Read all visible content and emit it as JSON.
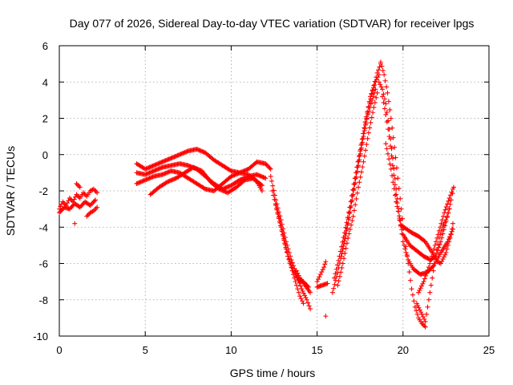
{
  "chart_data": {
    "type": "scatter",
    "title": "Day 077 of 2026, Sidereal Day-to-day VTEC variation (SDTVAR) for receiver lpgs",
    "xlabel": "GPS time / hours",
    "ylabel": "SDTVAR / TECUs",
    "xlim": [
      0,
      25
    ],
    "ylim": [
      -10,
      6
    ],
    "x_ticks": [
      "0",
      "5",
      "10",
      "15",
      "20",
      "25"
    ],
    "y_ticks": [
      "-10",
      "-8",
      "-6",
      "-4",
      "-2",
      "0",
      "2",
      "4",
      "6"
    ],
    "grid": true,
    "marker": "+",
    "colors": {
      "series": "#ff0000",
      "grid": "#a0a0a0",
      "axes": "#000000"
    },
    "series": [
      {
        "name": "SDTVAR",
        "segments": [
          [
            [
              0.0,
              -3.0
            ],
            [
              0.2,
              -2.6
            ],
            [
              0.4,
              -2.8
            ],
            [
              0.6,
              -2.4
            ],
            [
              0.8,
              -2.6
            ],
            [
              1.0,
              -2.2
            ],
            [
              1.2,
              -2.4
            ],
            [
              1.4,
              -2.1
            ],
            [
              1.6,
              -2.3
            ],
            [
              1.8,
              -2.0
            ],
            [
              2.0,
              -1.9
            ],
            [
              2.2,
              -2.1
            ]
          ],
          [
            [
              0.0,
              -3.2
            ],
            [
              0.3,
              -2.9
            ],
            [
              0.6,
              -3.0
            ],
            [
              0.9,
              -2.7
            ],
            [
              1.2,
              -2.9
            ],
            [
              1.5,
              -2.6
            ],
            [
              1.8,
              -2.8
            ],
            [
              2.1,
              -2.5
            ]
          ],
          [
            [
              1.6,
              -3.4
            ],
            [
              1.8,
              -3.2
            ],
            [
              2.0,
              -3.1
            ],
            [
              2.2,
              -2.9
            ]
          ],
          [
            [
              0.9,
              -3.8
            ]
          ],
          [
            [
              1.0,
              -1.6
            ],
            [
              1.2,
              -1.8
            ]
          ],
          [
            [
              4.5,
              -0.5
            ],
            [
              5.0,
              -0.8
            ],
            [
              5.5,
              -0.6
            ],
            [
              6.0,
              -0.4
            ],
            [
              6.5,
              -0.2
            ],
            [
              7.0,
              0.0
            ],
            [
              7.5,
              0.2
            ],
            [
              8.0,
              0.3
            ],
            [
              8.5,
              0.1
            ],
            [
              9.0,
              -0.3
            ],
            [
              9.5,
              -0.6
            ],
            [
              10.0,
              -0.9
            ],
            [
              10.5,
              -1.0
            ],
            [
              11.0,
              -0.8
            ],
            [
              11.5,
              -0.4
            ],
            [
              12.0,
              -0.5
            ],
            [
              12.3,
              -0.8
            ]
          ],
          [
            [
              4.5,
              -1.0
            ],
            [
              5.0,
              -1.1
            ],
            [
              5.5,
              -0.9
            ],
            [
              6.0,
              -0.7
            ],
            [
              6.5,
              -0.6
            ],
            [
              7.0,
              -0.5
            ],
            [
              7.5,
              -0.6
            ],
            [
              8.0,
              -0.8
            ],
            [
              8.5,
              -1.2
            ],
            [
              9.0,
              -1.6
            ],
            [
              9.5,
              -1.9
            ],
            [
              10.0,
              -1.7
            ],
            [
              10.5,
              -1.4
            ],
            [
              11.0,
              -1.2
            ],
            [
              11.5,
              -1.1
            ],
            [
              12.0,
              -1.3
            ]
          ],
          [
            [
              4.5,
              -1.6
            ],
            [
              5.0,
              -1.4
            ],
            [
              5.5,
              -1.2
            ],
            [
              6.0,
              -1.1
            ],
            [
              6.5,
              -0.9
            ],
            [
              7.0,
              -1.0
            ],
            [
              7.5,
              -1.3
            ],
            [
              8.0,
              -1.6
            ],
            [
              8.5,
              -1.9
            ],
            [
              9.0,
              -2.0
            ],
            [
              9.5,
              -1.6
            ],
            [
              10.0,
              -1.2
            ],
            [
              10.5,
              -1.0
            ],
            [
              11.0,
              -1.1
            ],
            [
              11.5,
              -1.5
            ],
            [
              11.8,
              -2.0
            ]
          ],
          [
            [
              5.3,
              -2.2
            ],
            [
              5.8,
              -1.8
            ],
            [
              6.3,
              -1.5
            ],
            [
              6.8,
              -1.3
            ],
            [
              7.3,
              -1.0
            ],
            [
              7.8,
              -0.7
            ],
            [
              8.3,
              -0.9
            ],
            [
              8.8,
              -1.5
            ],
            [
              9.3,
              -1.9
            ],
            [
              9.8,
              -2.1
            ],
            [
              10.3,
              -1.8
            ],
            [
              10.8,
              -1.4
            ],
            [
              11.3,
              -1.3
            ],
            [
              11.8,
              -1.7
            ]
          ],
          [
            [
              12.3,
              -1.2
            ],
            [
              12.6,
              -2.5
            ],
            [
              12.9,
              -3.6
            ],
            [
              13.2,
              -4.8
            ],
            [
              13.5,
              -5.8
            ],
            [
              13.8,
              -6.6
            ],
            [
              14.1,
              -7.4
            ],
            [
              14.4,
              -8.0
            ],
            [
              14.6,
              -8.5
            ]
          ],
          [
            [
              12.4,
              -2.0
            ],
            [
              12.7,
              -3.2
            ],
            [
              13.0,
              -4.4
            ],
            [
              13.3,
              -5.6
            ],
            [
              13.6,
              -6.4
            ],
            [
              13.9,
              -6.9
            ],
            [
              14.2,
              -7.0
            ],
            [
              14.5,
              -7.3
            ]
          ],
          [
            [
              12.6,
              -2.8
            ],
            [
              12.9,
              -4.0
            ],
            [
              13.2,
              -5.2
            ],
            [
              13.5,
              -6.2
            ],
            [
              13.8,
              -7.2
            ],
            [
              14.0,
              -7.8
            ],
            [
              14.2,
              -8.2
            ]
          ],
          [
            [
              13.8,
              -6.4
            ],
            [
              14.0,
              -6.8
            ],
            [
              14.3,
              -7.2
            ],
            [
              14.6,
              -7.6
            ]
          ],
          [
            [
              15.0,
              -7.0
            ],
            [
              15.2,
              -6.6
            ],
            [
              15.4,
              -6.2
            ],
            [
              15.5,
              -5.9
            ]
          ],
          [
            [
              15.0,
              -7.3
            ],
            [
              15.3,
              -7.2
            ],
            [
              15.6,
              -7.1
            ]
          ],
          [
            [
              15.5,
              -8.9
            ]
          ],
          [
            [
              15.9,
              -7.6
            ],
            [
              16.2,
              -6.5
            ],
            [
              16.5,
              -5.2
            ],
            [
              16.8,
              -3.8
            ],
            [
              17.1,
              -2.2
            ],
            [
              17.4,
              -0.6
            ],
            [
              17.7,
              1.0
            ],
            [
              18.0,
              2.6
            ],
            [
              18.3,
              3.8
            ],
            [
              18.5,
              4.5
            ],
            [
              18.7,
              5.0
            ]
          ],
          [
            [
              16.0,
              -6.8
            ],
            [
              16.3,
              -5.6
            ],
            [
              16.6,
              -4.3
            ],
            [
              16.9,
              -2.9
            ],
            [
              17.2,
              -1.3
            ],
            [
              17.5,
              0.2
            ],
            [
              17.8,
              1.8
            ],
            [
              18.1,
              3.2
            ],
            [
              18.4,
              4.0
            ],
            [
              18.6,
              4.4
            ]
          ],
          [
            [
              16.2,
              -7.2
            ],
            [
              16.5,
              -6.0
            ],
            [
              16.8,
              -4.6
            ],
            [
              17.1,
              -3.4
            ],
            [
              17.4,
              -1.8
            ],
            [
              17.7,
              -0.4
            ],
            [
              18.0,
              1.2
            ],
            [
              18.3,
              2.6
            ],
            [
              18.5,
              3.4
            ]
          ],
          [
            [
              16.4,
              -5.6
            ],
            [
              16.7,
              -4.2
            ],
            [
              17.0,
              -2.6
            ],
            [
              17.3,
              -1.0
            ],
            [
              17.6,
              0.6
            ],
            [
              17.9,
              2.0
            ],
            [
              18.2,
              3.0
            ],
            [
              18.4,
              3.6
            ]
          ],
          [
            [
              18.7,
              5.1
            ],
            [
              18.9,
              4.4
            ],
            [
              19.1,
              3.4
            ],
            [
              19.3,
              2.0
            ],
            [
              19.5,
              0.4
            ],
            [
              19.7,
              -1.3
            ],
            [
              19.9,
              -3.0
            ],
            [
              20.1,
              -4.6
            ],
            [
              20.3,
              -6.0
            ],
            [
              20.5,
              -7.4
            ],
            [
              20.7,
              -8.4
            ],
            [
              20.9,
              -9.0
            ],
            [
              21.1,
              -9.3
            ],
            [
              21.3,
              -9.5
            ]
          ],
          [
            [
              18.6,
              4.0
            ],
            [
              18.8,
              3.6
            ],
            [
              19.0,
              2.8
            ],
            [
              19.2,
              1.4
            ],
            [
              19.4,
              -0.2
            ],
            [
              19.6,
              -1.9
            ],
            [
              19.8,
              -3.5
            ],
            [
              20.0,
              -4.8
            ],
            [
              20.3,
              -5.8
            ],
            [
              20.6,
              -6.3
            ],
            [
              21.0,
              -6.6
            ],
            [
              21.4,
              -6.5
            ],
            [
              21.8,
              -6.1
            ],
            [
              22.2,
              -5.4
            ],
            [
              22.6,
              -4.8
            ],
            [
              22.9,
              -4.1
            ]
          ],
          [
            [
              18.8,
              3.2
            ],
            [
              19.0,
              2.2
            ],
            [
              19.2,
              1.0
            ],
            [
              19.4,
              -0.6
            ],
            [
              19.6,
              -2.2
            ],
            [
              19.8,
              -3.6
            ],
            [
              20.0,
              -4.4
            ],
            [
              20.4,
              -5.0
            ],
            [
              20.8,
              -5.3
            ],
            [
              21.2,
              -5.6
            ],
            [
              21.6,
              -5.8
            ],
            [
              21.9,
              -5.6
            ],
            [
              22.2,
              -4.8
            ],
            [
              22.5,
              -3.7
            ],
            [
              22.8,
              -2.5
            ],
            [
              22.95,
              -1.8
            ]
          ],
          [
            [
              19.0,
              0.6
            ],
            [
              19.3,
              -0.8
            ],
            [
              19.6,
              -2.6
            ],
            [
              19.9,
              -3.9
            ],
            [
              20.2,
              -4.1
            ],
            [
              20.5,
              -4.3
            ],
            [
              20.9,
              -4.5
            ],
            [
              21.3,
              -4.8
            ],
            [
              21.7,
              -5.4
            ],
            [
              22.0,
              -5.9
            ],
            [
              22.2,
              -6.0
            ],
            [
              22.5,
              -5.4
            ],
            [
              22.8,
              -4.4
            ],
            [
              22.9,
              -3.8
            ]
          ],
          [
            [
              20.8,
              -8.2
            ],
            [
              21.1,
              -8.8
            ],
            [
              21.3,
              -9.2
            ],
            [
              21.5,
              -8.0
            ],
            [
              21.7,
              -6.8
            ],
            [
              21.9,
              -5.6
            ],
            [
              22.1,
              -4.6
            ],
            [
              22.3,
              -4.0
            ],
            [
              22.5,
              -3.6
            ],
            [
              22.7,
              -3.0
            ]
          ],
          [
            [
              20.9,
              -7.6
            ],
            [
              21.2,
              -7.0
            ],
            [
              21.5,
              -6.2
            ],
            [
              21.8,
              -5.2
            ],
            [
              22.1,
              -4.2
            ],
            [
              22.4,
              -3.2
            ],
            [
              22.7,
              -2.4
            ],
            [
              22.9,
              -1.9
            ]
          ]
        ]
      }
    ]
  }
}
